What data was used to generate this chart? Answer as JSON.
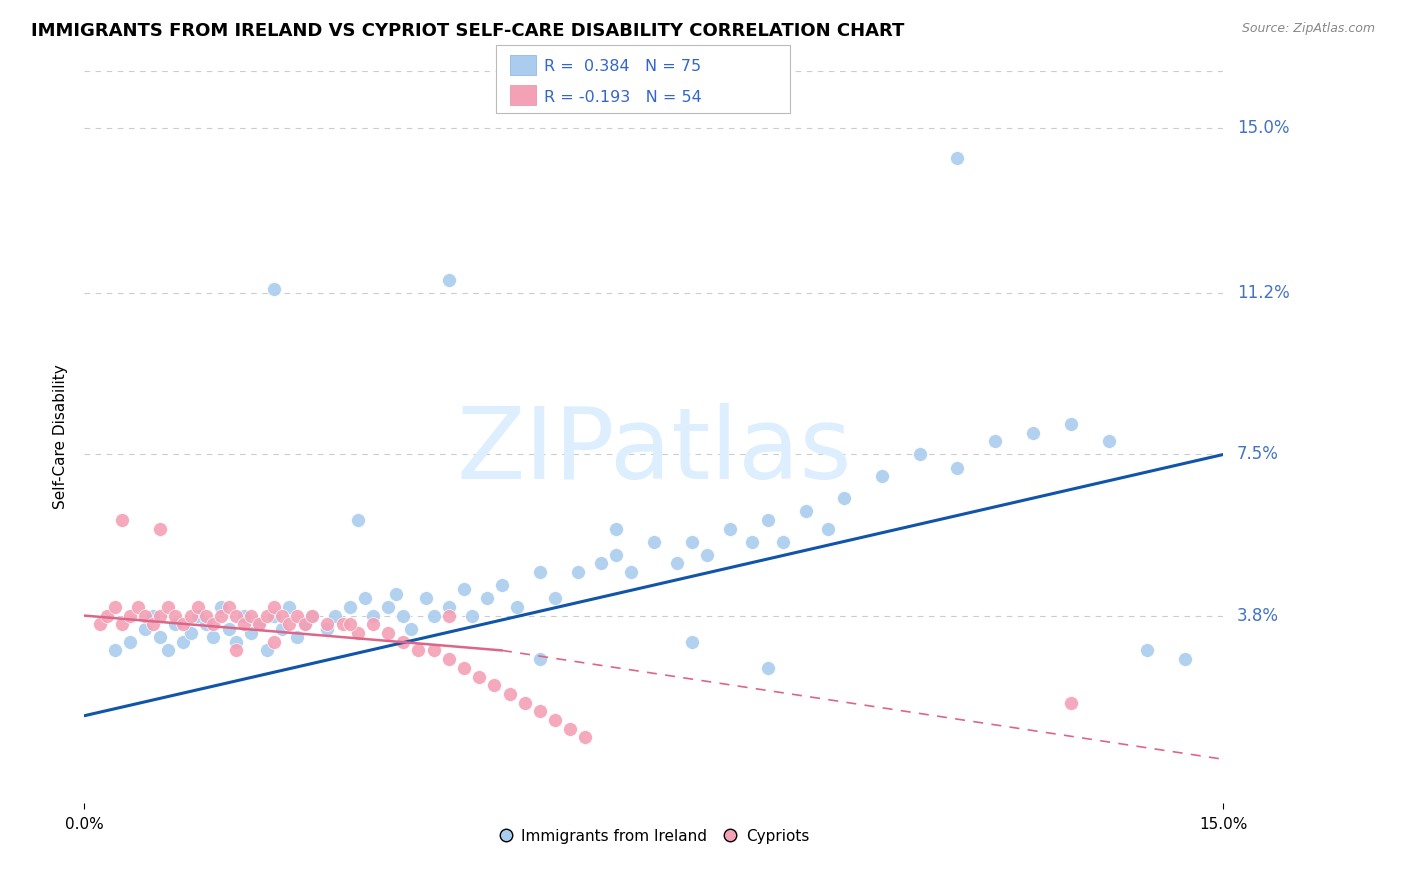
{
  "title": "IMMIGRANTS FROM IRELAND VS CYPRIOT SELF-CARE DISABILITY CORRELATION CHART",
  "source": "Source: ZipAtlas.com",
  "ylabel": "Self-Care Disability",
  "ytick_labels": [
    "3.8%",
    "7.5%",
    "11.2%",
    "15.0%"
  ],
  "ytick_values": [
    0.038,
    0.075,
    0.112,
    0.15
  ],
  "xlim": [
    0.0,
    0.15
  ],
  "ylim": [
    -0.005,
    0.163
  ],
  "legend_label1": "Immigrants from Ireland",
  "legend_label2": "Cypriots",
  "blue_marker_color": "#aaccee",
  "pink_marker_color": "#f4a0b5",
  "trend_blue": "#1155aa",
  "trend_pink": "#dd6688",
  "watermark": "ZIPatlas",
  "watermark_color": "#ddeeff",
  "blue_scatter_x": [
    0.004,
    0.006,
    0.008,
    0.009,
    0.01,
    0.011,
    0.012,
    0.013,
    0.014,
    0.015,
    0.016,
    0.017,
    0.018,
    0.019,
    0.02,
    0.021,
    0.022,
    0.023,
    0.024,
    0.025,
    0.026,
    0.027,
    0.028,
    0.029,
    0.03,
    0.032,
    0.033,
    0.035,
    0.037,
    0.038,
    0.04,
    0.041,
    0.042,
    0.043,
    0.045,
    0.046,
    0.048,
    0.05,
    0.051,
    0.053,
    0.055,
    0.057,
    0.06,
    0.062,
    0.065,
    0.068,
    0.07,
    0.072,
    0.075,
    0.078,
    0.08,
    0.082,
    0.085,
    0.088,
    0.09,
    0.092,
    0.095,
    0.098,
    0.1,
    0.105,
    0.11,
    0.115,
    0.12,
    0.125,
    0.13,
    0.135,
    0.14,
    0.145,
    0.048,
    0.036,
    0.025,
    0.07,
    0.115,
    0.08,
    0.06,
    0.09
  ],
  "blue_scatter_y": [
    0.03,
    0.032,
    0.035,
    0.038,
    0.033,
    0.03,
    0.036,
    0.032,
    0.034,
    0.038,
    0.036,
    0.033,
    0.04,
    0.035,
    0.032,
    0.038,
    0.034,
    0.036,
    0.03,
    0.038,
    0.035,
    0.04,
    0.033,
    0.036,
    0.038,
    0.035,
    0.038,
    0.04,
    0.042,
    0.038,
    0.04,
    0.043,
    0.038,
    0.035,
    0.042,
    0.038,
    0.04,
    0.044,
    0.038,
    0.042,
    0.045,
    0.04,
    0.048,
    0.042,
    0.048,
    0.05,
    0.052,
    0.048,
    0.055,
    0.05,
    0.055,
    0.052,
    0.058,
    0.055,
    0.06,
    0.055,
    0.062,
    0.058,
    0.065,
    0.07,
    0.075,
    0.072,
    0.078,
    0.08,
    0.082,
    0.078,
    0.03,
    0.028,
    0.115,
    0.06,
    0.113,
    0.058,
    0.143,
    0.032,
    0.028,
    0.026
  ],
  "pink_scatter_x": [
    0.002,
    0.003,
    0.004,
    0.005,
    0.006,
    0.007,
    0.008,
    0.009,
    0.01,
    0.011,
    0.012,
    0.013,
    0.014,
    0.015,
    0.016,
    0.017,
    0.018,
    0.019,
    0.02,
    0.021,
    0.022,
    0.023,
    0.024,
    0.025,
    0.026,
    0.027,
    0.028,
    0.029,
    0.03,
    0.032,
    0.034,
    0.036,
    0.038,
    0.04,
    0.042,
    0.044,
    0.046,
    0.048,
    0.05,
    0.052,
    0.054,
    0.056,
    0.058,
    0.06,
    0.062,
    0.064,
    0.066,
    0.035,
    0.01,
    0.048,
    0.02,
    0.025,
    0.13,
    0.005
  ],
  "pink_scatter_y": [
    0.036,
    0.038,
    0.04,
    0.036,
    0.038,
    0.04,
    0.038,
    0.036,
    0.038,
    0.04,
    0.038,
    0.036,
    0.038,
    0.04,
    0.038,
    0.036,
    0.038,
    0.04,
    0.038,
    0.036,
    0.038,
    0.036,
    0.038,
    0.04,
    0.038,
    0.036,
    0.038,
    0.036,
    0.038,
    0.036,
    0.036,
    0.034,
    0.036,
    0.034,
    0.032,
    0.03,
    0.03,
    0.028,
    0.026,
    0.024,
    0.022,
    0.02,
    0.018,
    0.016,
    0.014,
    0.012,
    0.01,
    0.036,
    0.058,
    0.038,
    0.03,
    0.032,
    0.018,
    0.06
  ],
  "blue_trend": [
    0.0,
    0.015,
    0.15,
    0.075
  ],
  "pink_solid_trend": [
    0.0,
    0.038,
    0.055,
    0.03
  ],
  "pink_dash_trend": [
    0.055,
    0.03,
    0.15,
    0.005
  ]
}
